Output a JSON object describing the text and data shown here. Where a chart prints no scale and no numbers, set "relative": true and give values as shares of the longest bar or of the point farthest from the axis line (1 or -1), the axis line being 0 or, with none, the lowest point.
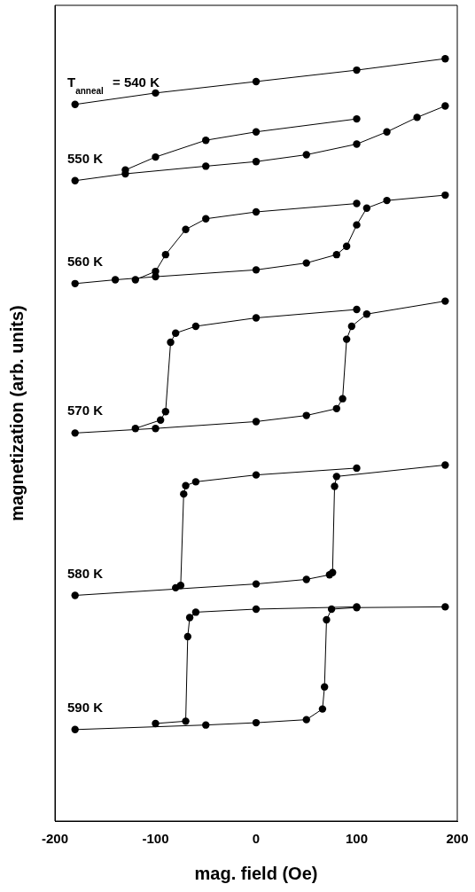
{
  "chart_data": {
    "type": "line",
    "xlabel": "mag. field (Oe)",
    "ylabel": "magnetization (arb. units)",
    "relative": true,
    "xlim": [
      -200,
      200
    ],
    "xticks": [
      -200,
      -100,
      0,
      100,
      200
    ],
    "marker": "circle",
    "line_style": "solid",
    "legend": false,
    "grid": false,
    "series": [
      {
        "name": "T$_{anneal}$ = 540 K",
        "color": "#000000",
        "x": [
          -180,
          -100,
          0,
          100,
          188
        ],
        "values": [
          0.94,
          0.955,
          0.97,
          0.985,
          1.0
        ]
      },
      {
        "color": "#000000",
        "x": [
          -130,
          -100,
          -50,
          0,
          100
        ],
        "values": [
          0.854,
          0.871,
          0.893,
          0.904,
          0.921
        ]
      },
      {
        "name": "550 K",
        "color": "#000000",
        "x": [
          -180,
          -130,
          -50,
          0,
          50,
          100,
          130,
          160,
          188
        ],
        "values": [
          0.84,
          0.849,
          0.859,
          0.865,
          0.874,
          0.888,
          0.904,
          0.923,
          0.938
        ]
      },
      {
        "color": "#000000",
        "x": [
          -120,
          -100,
          -90,
          -70,
          -50,
          0,
          100
        ],
        "values": [
          0.71,
          0.721,
          0.743,
          0.776,
          0.79,
          0.799,
          0.81
        ]
      },
      {
        "name": "560 K",
        "color": "#000000",
        "x": [
          -180,
          -140,
          -100,
          0,
          50,
          80,
          90,
          100,
          110,
          130,
          188
        ],
        "values": [
          0.705,
          0.71,
          0.714,
          0.723,
          0.732,
          0.743,
          0.754,
          0.782,
          0.804,
          0.814,
          0.821
        ]
      },
      {
        "color": "#000000",
        "x": [
          -120,
          -95,
          -90,
          -85,
          -80,
          -60,
          0,
          100
        ],
        "values": [
          0.515,
          0.526,
          0.537,
          0.628,
          0.64,
          0.649,
          0.66,
          0.671
        ]
      },
      {
        "name": "570 K",
        "color": "#000000",
        "x": [
          -180,
          -100,
          0,
          50,
          80,
          86,
          90,
          95,
          110,
          188
        ],
        "values": [
          0.509,
          0.515,
          0.524,
          0.532,
          0.541,
          0.554,
          0.632,
          0.649,
          0.665,
          0.682
        ]
      },
      {
        "color": "#000000",
        "x": [
          -80,
          -75,
          -72,
          -70,
          -60,
          0,
          100
        ],
        "values": [
          0.306,
          0.309,
          0.429,
          0.44,
          0.445,
          0.454,
          0.463
        ]
      },
      {
        "name": "580 K",
        "color": "#000000",
        "x": [
          -180,
          0,
          50,
          73,
          76,
          78,
          80,
          188
        ],
        "values": [
          0.296,
          0.311,
          0.317,
          0.323,
          0.326,
          0.439,
          0.452,
          0.467
        ]
      },
      {
        "color": "#000000",
        "x": [
          -100,
          -70,
          -68,
          -66,
          -60,
          0,
          100
        ],
        "values": [
          0.128,
          0.131,
          0.242,
          0.267,
          0.274,
          0.278,
          0.281
        ]
      },
      {
        "name": "590 K",
        "color": "#000000",
        "x": [
          -180,
          -50,
          0,
          50,
          66,
          68,
          70,
          75,
          100,
          188
        ],
        "values": [
          0.12,
          0.126,
          0.129,
          0.133,
          0.147,
          0.176,
          0.264,
          0.278,
          0.28,
          0.281
        ]
      }
    ]
  }
}
